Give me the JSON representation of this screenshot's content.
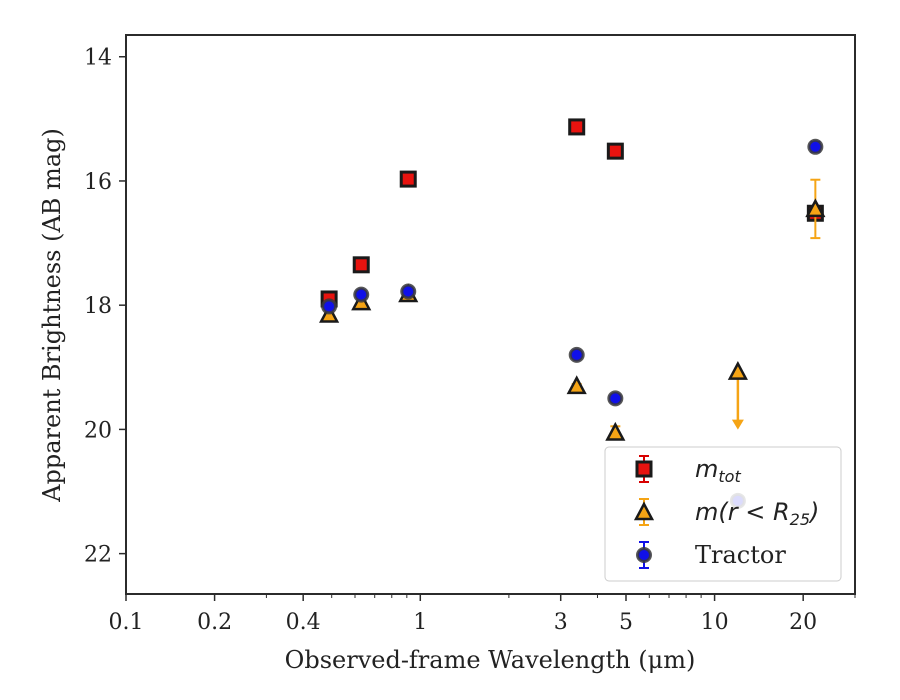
{
  "chart_data": {
    "type": "scatter",
    "xlabel": "Observed-frame Wavelength (μm)",
    "ylabel": "Apparent Brightness (AB mag)",
    "xscale": "log",
    "xlim": [
      0.1,
      30
    ],
    "ylim": [
      22.65,
      13.65
    ],
    "y_inverted": true,
    "xticks": [
      {
        "value": 0.1,
        "label": "0.1"
      },
      {
        "value": 0.2,
        "label": "0.2"
      },
      {
        "value": 0.4,
        "label": "0.4"
      },
      {
        "value": 1,
        "label": "1"
      },
      {
        "value": 3,
        "label": "3"
      },
      {
        "value": 5,
        "label": "5"
      },
      {
        "value": 10,
        "label": "10"
      },
      {
        "value": 20,
        "label": "20"
      }
    ],
    "yticks": [
      {
        "value": 14,
        "label": "14"
      },
      {
        "value": 16,
        "label": "16"
      },
      {
        "value": 18,
        "label": "18"
      },
      {
        "value": 20,
        "label": "20"
      },
      {
        "value": 22,
        "label": "22"
      }
    ],
    "legend_position": "bottom-right",
    "grid": false,
    "series": [
      {
        "name": "m_tot",
        "legend_main": "m",
        "legend_sub": "tot",
        "marker": "square",
        "fill": "#e8130f",
        "edge": "#1a1a1a",
        "errcolor": "#d80000",
        "points": [
          {
            "x": 0.49,
            "y": 17.9,
            "err": 0.05
          },
          {
            "x": 0.63,
            "y": 17.35,
            "err": 0.05
          },
          {
            "x": 0.91,
            "y": 15.97,
            "err": 0.05
          },
          {
            "x": 3.4,
            "y": 15.13,
            "err": 0.05
          },
          {
            "x": 4.6,
            "y": 15.52,
            "err": 0.05
          },
          {
            "x": 22.0,
            "y": 16.52,
            "err": 0.1
          }
        ]
      },
      {
        "name": "m(r < R25)",
        "legend_main": "m(r < R",
        "legend_sub": "25",
        "legend_end": ")",
        "marker": "triangle",
        "fill": "#f5a415",
        "edge": "#1a1a1a",
        "errcolor": "#f5a415",
        "points": [
          {
            "x": 0.49,
            "y": 18.15,
            "err": 0.03
          },
          {
            "x": 0.63,
            "y": 17.95,
            "err": 0.03
          },
          {
            "x": 0.91,
            "y": 17.82,
            "err": 0.03
          },
          {
            "x": 3.4,
            "y": 19.3,
            "err": 0.03
          },
          {
            "x": 4.6,
            "y": 20.05,
            "err": 0.1
          },
          {
            "x": 12.0,
            "y": 19.07,
            "upper_limit": true
          },
          {
            "x": 22.0,
            "y": 16.45,
            "err": 0.47
          }
        ]
      },
      {
        "name": "Tractor",
        "legend_main": "Tractor",
        "marker": "circle",
        "fill": "#1010e8",
        "edge": "#3a3a3a",
        "errcolor": "#1010e8",
        "points": [
          {
            "x": 0.49,
            "y": 18.02,
            "err": 0.05
          },
          {
            "x": 0.63,
            "y": 17.83,
            "err": 0.05
          },
          {
            "x": 0.91,
            "y": 17.78,
            "err": 0.05
          },
          {
            "x": 3.4,
            "y": 18.8,
            "err": 0.05
          },
          {
            "x": 4.6,
            "y": 19.5,
            "err": 0.05
          },
          {
            "x": 12.0,
            "y": 21.15,
            "err": 0.05
          },
          {
            "x": 22.0,
            "y": 15.45,
            "err": 0.08
          }
        ]
      }
    ]
  }
}
